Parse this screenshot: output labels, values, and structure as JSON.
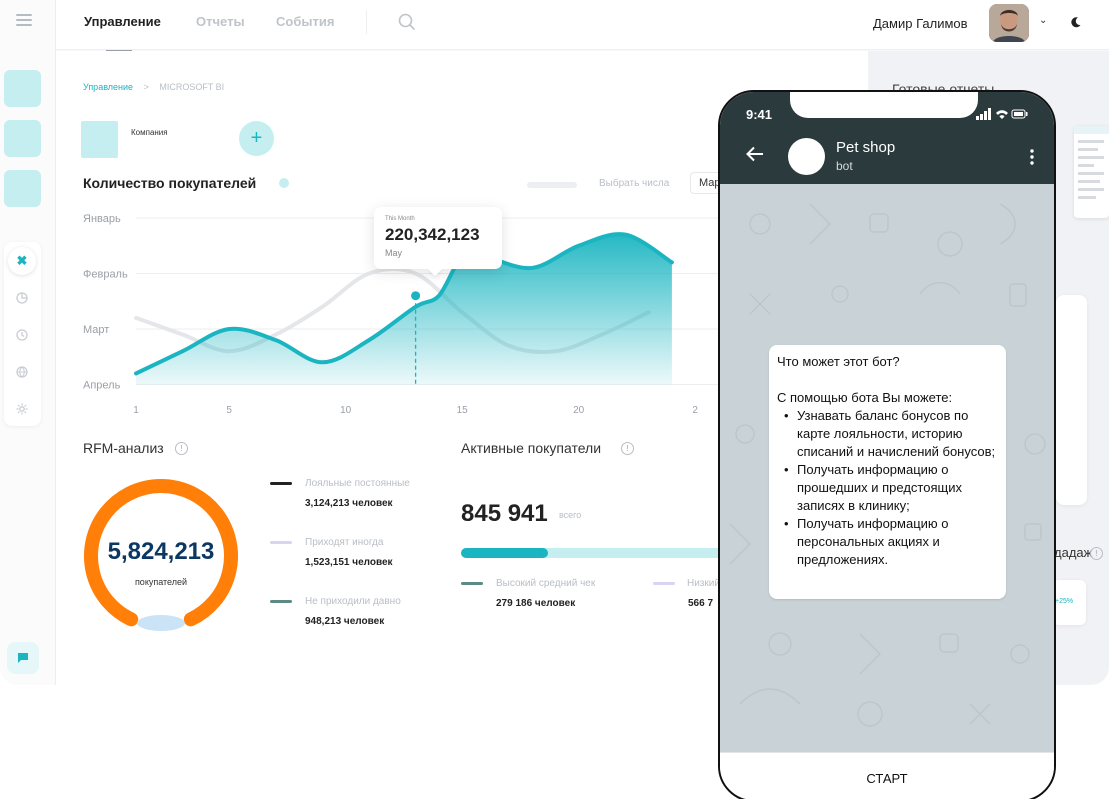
{
  "topbar": {
    "tabs": [
      {
        "label": "Управление",
        "active": true
      },
      {
        "label": "Отчеты",
        "active": false
      },
      {
        "label": "События",
        "active": false
      }
    ],
    "user_name": "Дамир Галимов"
  },
  "breadcrumb": {
    "root": "Управление",
    "sep": ">",
    "current": "MICROSOFT BI"
  },
  "company_label": "Компания",
  "add_label": "+",
  "buyers_chart": {
    "title": "Количество покупателей",
    "select_label": "Выбрать числа",
    "select_value": "Мар",
    "tooltip": {
      "period": "This Month",
      "value": "220,342,123",
      "month": "May"
    }
  },
  "chart_data": {
    "type": "area",
    "y_categories": [
      "Январь",
      "Февраль",
      "Март",
      "Апрель"
    ],
    "x_ticks": [
      "1",
      "5",
      "10",
      "15",
      "20",
      "2"
    ],
    "series": [
      {
        "x": [
          1,
          3,
          5,
          7,
          9,
          11,
          13,
          14,
          15,
          16,
          18,
          20,
          22,
          24
        ],
        "y": [
          3.8,
          3.4,
          3.0,
          3.2,
          3.6,
          3.2,
          2.6,
          2.4,
          1.7,
          1.7,
          1.9,
          1.5,
          1.3,
          1.8
        ]
      },
      {
        "x": [
          1,
          3,
          5,
          7,
          9,
          11,
          13,
          15,
          17,
          19,
          21,
          23
        ],
        "y": [
          2.8,
          3.1,
          3.4,
          3.1,
          2.6,
          2.0,
          2.0,
          2.7,
          3.3,
          3.4,
          3.1,
          2.7
        ]
      }
    ],
    "highlight": {
      "x": 13,
      "label": "May"
    },
    "colors": {
      "primary": "#1ab5c1",
      "secondary": "#e4e6ea"
    }
  },
  "rfm": {
    "title": "RFM-анализ",
    "total": "5,824,213",
    "total_label": "покупателей",
    "segments": [
      {
        "label": "Лояльные постоянные",
        "value": "3,124,213 человек",
        "color": "#222222"
      },
      {
        "label": "Приходят иногда",
        "value": "1,523,151 человек",
        "color": "#d8d4f2"
      },
      {
        "label": "Не приходили давно",
        "value": "948,213 человек",
        "color": "#5b8b84"
      }
    ],
    "donut_share": 0.86,
    "colors": {
      "ring": "#ff7f09",
      "gap": "#c5e0f5"
    }
  },
  "active_buyers": {
    "title": "Активные покупатели",
    "total": "845 941",
    "total_suffix": "всего",
    "progress": 0.29,
    "segments": [
      {
        "label": "Высокий средний чек",
        "value": "279 186 человек",
        "color": "#5b8b84"
      },
      {
        "label": "Низкий",
        "value": "566 7",
        "color": "#d8d4f2"
      }
    ]
  },
  "right_panel": {
    "title": "Готовые отчеты",
    "sales_label": "дадаж",
    "small_value": "+25%"
  },
  "phone": {
    "time": "9:41",
    "chat_name": "Pet shop",
    "chat_sub": "bot",
    "bubble": {
      "title": "Что может этот бот?",
      "intro": "С помощью бота Вы можете:",
      "items": [
        "Узнавать баланс бонусов по карте лояльности, историю списаний и начислений бонусов;",
        "Получать информацию о прошедших и предстоящих записях в клинику;",
        "Получать информацию о персональных акциях и предложениях."
      ]
    },
    "start_label": "СТАРТ"
  }
}
